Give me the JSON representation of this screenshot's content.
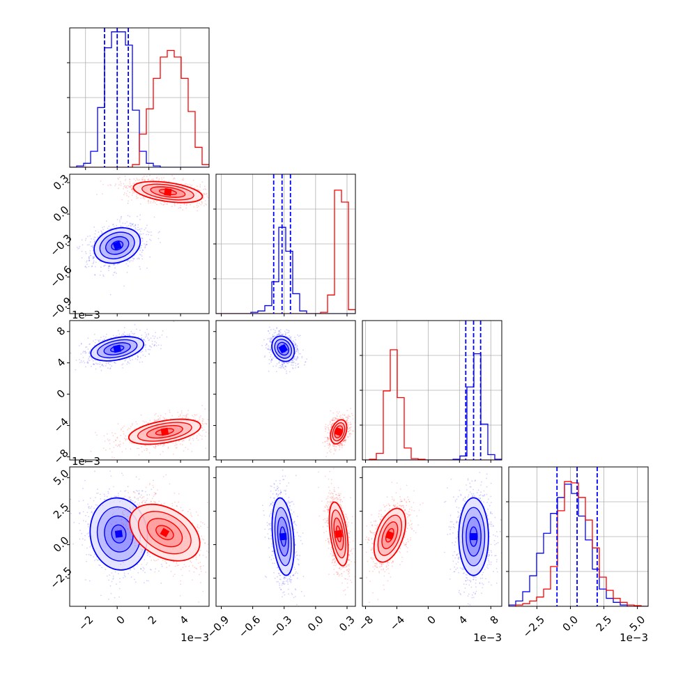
{
  "chart_data": {
    "type": "corner",
    "colors": {
      "blue": "#0000ff",
      "red": "#ff0000",
      "blue_fill": "#6f6fff",
      "red_fill": "#ff7a7a"
    },
    "grid": true,
    "series": [
      {
        "color": "blue"
      },
      {
        "color": "red"
      }
    ],
    "params": [
      {
        "index": 0,
        "range": [
          -3.0,
          5.8
        ],
        "ticks": [
          -2,
          0,
          2,
          4
        ],
        "tick_labels": [
          "−2",
          "0",
          "2",
          "4"
        ],
        "exponent": "1e−3"
      },
      {
        "index": 1,
        "range": [
          -0.95,
          0.38
        ],
        "ticks": [
          -0.9,
          -0.6,
          -0.3,
          0.0,
          0.3
        ],
        "tick_labels": [
          "−0.9",
          "−0.6",
          "−0.3",
          "0.0",
          "0.3"
        ],
        "exponent": ""
      },
      {
        "index": 2,
        "range": [
          -8.4,
          9.4
        ],
        "ticks": [
          -8,
          -4,
          0,
          4,
          8
        ],
        "tick_labels": [
          "−8",
          "−4",
          "0",
          "4",
          "8"
        ],
        "exponent": "1e−3"
      },
      {
        "index": 3,
        "range": [
          -4.6,
          5.8
        ],
        "ticks": [
          -2.5,
          0.0,
          2.5,
          5.0
        ],
        "tick_labels": [
          "−2.5",
          "0.0",
          "2.5",
          "5.0"
        ],
        "exponent": "1e−3"
      }
    ],
    "quantiles": [
      [
        -0.8,
        0.0,
        0.7
      ],
      [
        -0.4,
        -0.32,
        -0.24
      ],
      [
        4.8,
        5.8,
        6.7
      ],
      [
        -1.0,
        0.5,
        2.0
      ]
    ],
    "histograms": [
      {
        "edges": [
          -3.0,
          -2.56,
          -2.12,
          -1.68,
          -1.24,
          -0.8,
          -0.36,
          0.08,
          0.52,
          0.96,
          1.4,
          1.84,
          2.28,
          2.72,
          3.16,
          3.6,
          4.04,
          4.48,
          4.92,
          5.36,
          5.8
        ],
        "blue": [
          0,
          0.01,
          0.03,
          0.12,
          0.45,
          0.9,
          1.02,
          1.02,
          0.92,
          0.43,
          0.12,
          0.03,
          0.01,
          0,
          0,
          0,
          0,
          0,
          0,
          0
        ],
        "red": [
          0,
          0,
          0,
          0,
          0,
          0,
          0,
          0,
          0,
          0.02,
          0.25,
          0.44,
          0.67,
          0.83,
          0.88,
          0.83,
          0.67,
          0.42,
          0.15,
          0.02
        ]
      },
      {
        "edges": [
          -0.95,
          -0.8835,
          -0.817,
          -0.7505,
          -0.684,
          -0.6175,
          -0.551,
          -0.4845,
          -0.418,
          -0.3515,
          -0.285,
          -0.2185,
          -0.152,
          -0.0855,
          -0.019,
          0.0475,
          0.114,
          0.1805,
          0.247,
          0.3135,
          0.38
        ],
        "blue": [
          0,
          0,
          0,
          0,
          0,
          0.01,
          0.02,
          0.06,
          0.24,
          0.65,
          0.47,
          0.15,
          0.02,
          0,
          0,
          0,
          0,
          0,
          0,
          0
        ],
        "red": [
          0,
          0,
          0,
          0,
          0,
          0,
          0,
          0,
          0,
          0,
          0,
          0,
          0,
          0,
          0,
          0.01,
          0.14,
          0.93,
          0.84,
          0.03
        ]
      },
      {
        "edges": [
          -8.4,
          -7.51,
          -6.62,
          -5.73,
          -4.84,
          -3.95,
          -3.06,
          -2.17,
          -1.28,
          -0.39,
          0.5,
          1.39,
          2.28,
          3.17,
          4.06,
          4.95,
          5.84,
          6.73,
          7.62,
          8.51,
          9.4
        ],
        "blue": [
          0,
          0,
          0,
          0,
          0,
          0,
          0,
          0,
          0,
          0,
          0,
          0,
          0,
          0.005,
          0.03,
          0.55,
          0.8,
          0.27,
          0.04,
          0.005
        ],
        "red": [
          0,
          0.005,
          0.05,
          0.52,
          0.83,
          0.47,
          0.09,
          0.01,
          0.005,
          0,
          0,
          0,
          0,
          0,
          0,
          0,
          0,
          0,
          0,
          0
        ]
      },
      {
        "edges": [
          -4.6,
          -4.08,
          -3.56,
          -3.04,
          -2.52,
          -2.0,
          -1.48,
          -0.96,
          -0.44,
          0.08,
          0.6,
          1.12,
          1.64,
          2.16,
          2.68,
          3.2,
          3.72,
          4.24,
          4.76,
          5.28,
          5.8
        ],
        "blue": [
          0.01,
          0.04,
          0.11,
          0.23,
          0.4,
          0.55,
          0.7,
          0.82,
          0.92,
          0.85,
          0.68,
          0.5,
          0.28,
          0.13,
          0.06,
          0.03,
          0.01,
          0,
          0,
          0
        ],
        "red": [
          0,
          0.01,
          0.02,
          0.04,
          0.07,
          0.13,
          0.3,
          0.72,
          0.94,
          0.93,
          0.82,
          0.65,
          0.44,
          0.22,
          0.12,
          0.06,
          0.03,
          0.01,
          0.005,
          0
        ]
      }
    ],
    "hist_ylim": [
      0,
      1.05
    ],
    "joint": [
      {
        "x": 0,
        "y": 1,
        "blue": {
          "mean": [
            0.0,
            -0.3
          ],
          "sd": [
            0.75,
            0.08
          ],
          "angle_deg": 20
        },
        "red": {
          "mean": [
            3.2,
            0.21
          ],
          "sd": [
            1.1,
            0.045
          ],
          "angle_deg": -8
        }
      },
      {
        "x": 0,
        "y": 2,
        "blue": {
          "mean": [
            0.0,
            5.8
          ],
          "sd": [
            0.85,
            0.7
          ],
          "angle_deg": 12
        },
        "red": {
          "mean": [
            3.0,
            -4.8
          ],
          "sd": [
            1.15,
            0.7
          ],
          "angle_deg": 10
        }
      },
      {
        "x": 1,
        "y": 2,
        "blue": {
          "mean": [
            -0.31,
            5.8
          ],
          "sd": [
            0.05,
            0.85
          ],
          "angle_deg": 30
        },
        "red": {
          "mean": [
            0.22,
            -4.8
          ],
          "sd": [
            0.035,
            0.8
          ],
          "angle_deg": -20
        }
      },
      {
        "x": 0,
        "y": 3,
        "blue": {
          "mean": [
            0.1,
            0.8
          ],
          "sd": [
            0.9,
            1.35
          ],
          "angle_deg": 8
        },
        "red": {
          "mean": [
            3.0,
            0.9
          ],
          "sd": [
            1.2,
            0.9
          ],
          "angle_deg": -30
        }
      },
      {
        "x": 1,
        "y": 3,
        "blue": {
          "mean": [
            -0.31,
            0.6
          ],
          "sd": [
            0.05,
            1.45
          ],
          "angle_deg": 5
        },
        "red": {
          "mean": [
            0.22,
            0.8
          ],
          "sd": [
            0.04,
            1.2
          ],
          "angle_deg": 8
        }
      },
      {
        "x": 2,
        "y": 3,
        "blue": {
          "mean": [
            5.8,
            0.6
          ],
          "sd": [
            0.95,
            1.45
          ],
          "angle_deg": 0
        },
        "red": {
          "mean": [
            -4.9,
            0.7
          ],
          "sd": [
            0.85,
            1.05
          ],
          "angle_deg": -20
        }
      }
    ]
  }
}
